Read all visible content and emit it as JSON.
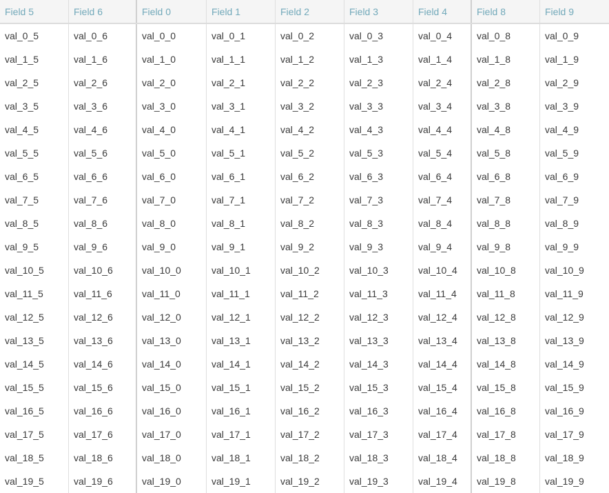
{
  "columns": [
    "Field 5",
    "Field 6",
    "Field 0",
    "Field 1",
    "Field 2",
    "Field 3",
    "Field 4",
    "Field 8",
    "Field 9"
  ],
  "rows": [
    [
      "val_0_5",
      "val_0_6",
      "val_0_0",
      "val_0_1",
      "val_0_2",
      "val_0_3",
      "val_0_4",
      "val_0_8",
      "val_0_9"
    ],
    [
      "val_1_5",
      "val_1_6",
      "val_1_0",
      "val_1_1",
      "val_1_2",
      "val_1_3",
      "val_1_4",
      "val_1_8",
      "val_1_9"
    ],
    [
      "val_2_5",
      "val_2_6",
      "val_2_0",
      "val_2_1",
      "val_2_2",
      "val_2_3",
      "val_2_4",
      "val_2_8",
      "val_2_9"
    ],
    [
      "val_3_5",
      "val_3_6",
      "val_3_0",
      "val_3_1",
      "val_3_2",
      "val_3_3",
      "val_3_4",
      "val_3_8",
      "val_3_9"
    ],
    [
      "val_4_5",
      "val_4_6",
      "val_4_0",
      "val_4_1",
      "val_4_2",
      "val_4_3",
      "val_4_4",
      "val_4_8",
      "val_4_9"
    ],
    [
      "val_5_5",
      "val_5_6",
      "val_5_0",
      "val_5_1",
      "val_5_2",
      "val_5_3",
      "val_5_4",
      "val_5_8",
      "val_5_9"
    ],
    [
      "val_6_5",
      "val_6_6",
      "val_6_0",
      "val_6_1",
      "val_6_2",
      "val_6_3",
      "val_6_4",
      "val_6_8",
      "val_6_9"
    ],
    [
      "val_7_5",
      "val_7_6",
      "val_7_0",
      "val_7_1",
      "val_7_2",
      "val_7_3",
      "val_7_4",
      "val_7_8",
      "val_7_9"
    ],
    [
      "val_8_5",
      "val_8_6",
      "val_8_0",
      "val_8_1",
      "val_8_2",
      "val_8_3",
      "val_8_4",
      "val_8_8",
      "val_8_9"
    ],
    [
      "val_9_5",
      "val_9_6",
      "val_9_0",
      "val_9_1",
      "val_9_2",
      "val_9_3",
      "val_9_4",
      "val_9_8",
      "val_9_9"
    ],
    [
      "val_10_5",
      "val_10_6",
      "val_10_0",
      "val_10_1",
      "val_10_2",
      "val_10_3",
      "val_10_4",
      "val_10_8",
      "val_10_9"
    ],
    [
      "val_11_5",
      "val_11_6",
      "val_11_0",
      "val_11_1",
      "val_11_2",
      "val_11_3",
      "val_11_4",
      "val_11_8",
      "val_11_9"
    ],
    [
      "val_12_5",
      "val_12_6",
      "val_12_0",
      "val_12_1",
      "val_12_2",
      "val_12_3",
      "val_12_4",
      "val_12_8",
      "val_12_9"
    ],
    [
      "val_13_5",
      "val_13_6",
      "val_13_0",
      "val_13_1",
      "val_13_2",
      "val_13_3",
      "val_13_4",
      "val_13_8",
      "val_13_9"
    ],
    [
      "val_14_5",
      "val_14_6",
      "val_14_0",
      "val_14_1",
      "val_14_2",
      "val_14_3",
      "val_14_4",
      "val_14_8",
      "val_14_9"
    ],
    [
      "val_15_5",
      "val_15_6",
      "val_15_0",
      "val_15_1",
      "val_15_2",
      "val_15_3",
      "val_15_4",
      "val_15_8",
      "val_15_9"
    ],
    [
      "val_16_5",
      "val_16_6",
      "val_16_0",
      "val_16_1",
      "val_16_2",
      "val_16_3",
      "val_16_4",
      "val_16_8",
      "val_16_9"
    ],
    [
      "val_17_5",
      "val_17_6",
      "val_17_0",
      "val_17_1",
      "val_17_2",
      "val_17_3",
      "val_17_4",
      "val_17_8",
      "val_17_9"
    ],
    [
      "val_18_5",
      "val_18_6",
      "val_18_0",
      "val_18_1",
      "val_18_2",
      "val_18_3",
      "val_18_4",
      "val_18_8",
      "val_18_9"
    ],
    [
      "val_19_5",
      "val_19_6",
      "val_19_0",
      "val_19_1",
      "val_19_2",
      "val_19_3",
      "val_19_4",
      "val_19_8",
      "val_19_9"
    ]
  ],
  "colors": {
    "header_text": "#72a9ba",
    "cell_text": "#3a3a3a",
    "header_bg": "#f5f5f5",
    "grid_line": "#dedede"
  }
}
